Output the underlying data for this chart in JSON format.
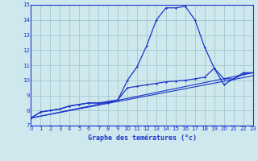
{
  "xlabel": "Graphe des temératures (°c)",
  "xlim": [
    0,
    23
  ],
  "ylim": [
    7,
    15
  ],
  "yticks": [
    7,
    8,
    9,
    10,
    11,
    12,
    13,
    14,
    15
  ],
  "xticks": [
    0,
    1,
    2,
    3,
    4,
    5,
    6,
    7,
    8,
    9,
    10,
    11,
    12,
    13,
    14,
    15,
    16,
    17,
    18,
    19,
    20,
    21,
    22,
    23
  ],
  "background_color": "#cfe8ed",
  "grid_color": "#a0c8d0",
  "line_color": "#1a35cc",
  "line1_x": [
    0,
    1,
    2,
    3,
    4,
    5,
    6,
    7,
    8,
    9,
    10,
    11,
    12,
    13,
    14,
    15,
    16,
    17,
    18,
    19,
    20,
    21,
    22,
    23
  ],
  "line1_y": [
    7.5,
    7.9,
    8.0,
    8.1,
    8.3,
    8.4,
    8.5,
    8.5,
    8.5,
    8.7,
    10.0,
    10.9,
    12.3,
    14.0,
    14.8,
    14.8,
    14.9,
    14.0,
    12.2,
    10.8,
    9.7,
    10.1,
    10.5,
    10.5
  ],
  "line2_x": [
    0,
    1,
    2,
    3,
    4,
    5,
    6,
    7,
    8,
    9,
    10,
    11,
    12,
    13,
    14,
    15,
    16,
    17,
    18,
    19,
    20,
    21,
    22,
    23
  ],
  "line2_y": [
    7.5,
    7.9,
    8.0,
    8.1,
    8.3,
    8.4,
    8.5,
    8.5,
    8.6,
    8.7,
    9.5,
    9.6,
    9.7,
    9.8,
    9.9,
    9.95,
    10.0,
    10.1,
    10.2,
    10.8,
    10.1,
    10.1,
    10.4,
    10.5
  ],
  "line3_x": [
    0,
    23
  ],
  "line3_y": [
    7.5,
    10.5
  ],
  "line4_x": [
    0,
    23
  ],
  "line4_y": [
    7.5,
    10.3
  ]
}
